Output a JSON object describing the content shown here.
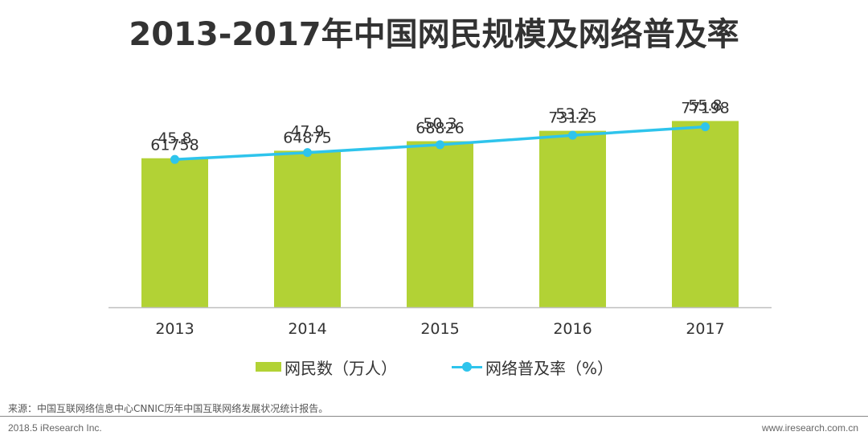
{
  "colors": {
    "bar": "#b2d235",
    "line": "#2ec4ec",
    "text": "#333333",
    "axis": "#bfbfbf"
  },
  "chart_data": {
    "type": "bar+line",
    "title": "2013-2017年中国网民规模及网络普及率",
    "categories": [
      "2013",
      "2014",
      "2015",
      "2016",
      "2017"
    ],
    "series": [
      {
        "name": "网民数（万人）",
        "type": "bar",
        "values": [
          61758,
          64875,
          68826,
          73125,
          77198
        ],
        "ylim": [
          0,
          100000
        ]
      },
      {
        "name": "网络普及率（%）",
        "type": "line",
        "values": [
          45.8,
          47.9,
          50.3,
          53.2,
          55.8
        ],
        "ylim": [
          0,
          70
        ]
      }
    ],
    "xlabel": "",
    "ylabel": "",
    "grid": false,
    "legend_position": "bottom-center"
  },
  "source": "来源：中国互联网络信息中心CNNIC历年中国互联网络发展状况统计报告。",
  "footer": {
    "left": "2018.5 iResearch Inc.",
    "right": "www.iresearch.com.cn"
  }
}
